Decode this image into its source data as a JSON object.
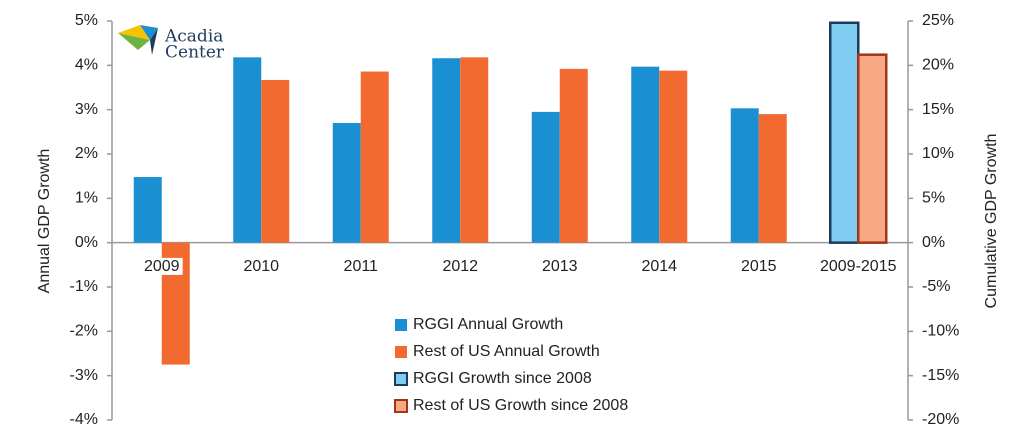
{
  "chart_data": {
    "type": "bar",
    "annotations": [
      "Acadia",
      "Center"
    ],
    "categories": [
      "2009",
      "2010",
      "2011",
      "2012",
      "2013",
      "2014",
      "2015",
      "2009-2015"
    ],
    "series": [
      {
        "name": "RGGI Annual Growth",
        "color": "#1a8fd1",
        "values": [
          1.48,
          4.18,
          2.7,
          4.16,
          2.95,
          3.97,
          3.03,
          null
        ]
      },
      {
        "name": "Rest of US Annual Growth",
        "color": "#f26a30",
        "values": [
          -2.75,
          3.67,
          3.86,
          4.18,
          3.92,
          3.88,
          2.9,
          null
        ]
      },
      {
        "name": "RGGI Growth since 2008",
        "color": "#7fcdf0",
        "edge_color": "#1f3a5f",
        "axis": "y2",
        "values": [
          null,
          null,
          null,
          null,
          null,
          null,
          null,
          24.8
        ]
      },
      {
        "name": "Rest of US Growth since 2008",
        "color": "#f8a882",
        "edge_color": "#a33418",
        "axis": "y2",
        "values": [
          null,
          null,
          null,
          null,
          null,
          null,
          null,
          21.2
        ]
      }
    ],
    "y_label": "Annual GDP Growth",
    "y2_label": "Cumulative GDP Growth",
    "ylim": [
      -4,
      5
    ],
    "yticks": [
      {
        "value": -4,
        "label": "-4%"
      },
      {
        "value": -3,
        "label": "-3%"
      },
      {
        "value": -2,
        "label": "-2%"
      },
      {
        "value": -1,
        "label": "-1%"
      },
      {
        "value": 0,
        "label": "0%"
      },
      {
        "value": 1,
        "label": "1%"
      },
      {
        "value": 2,
        "label": "2%"
      },
      {
        "value": 3,
        "label": "3%"
      },
      {
        "value": 4,
        "label": "4%"
      },
      {
        "value": 5,
        "label": "5%"
      }
    ],
    "y2lim": [
      -20,
      25
    ],
    "y2ticks": [
      {
        "value": -20,
        "label": "-20%"
      },
      {
        "value": -15,
        "label": "-15%"
      },
      {
        "value": -10,
        "label": "-10%"
      },
      {
        "value": -5,
        "label": "-5%"
      },
      {
        "value": 0,
        "label": "0%"
      },
      {
        "value": 5,
        "label": "5%"
      },
      {
        "value": 10,
        "label": "10%"
      },
      {
        "value": 15,
        "label": "15%"
      },
      {
        "value": 20,
        "label": "20%"
      },
      {
        "value": 25,
        "label": "25%"
      }
    ],
    "grid": false
  }
}
